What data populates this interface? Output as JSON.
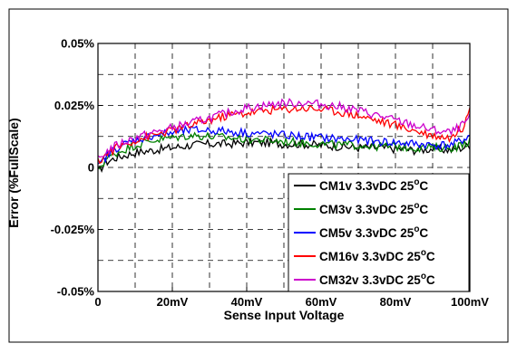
{
  "chart_data": {
    "type": "line",
    "xlabel": "Sense Input Voltage",
    "ylabel": "Error (%FullScale)",
    "xlim": [
      0,
      100
    ],
    "ylim": [
      -0.05,
      0.05
    ],
    "x_ticks": [
      {
        "value": 0,
        "label": "0"
      },
      {
        "value": 20,
        "label": "20mV"
      },
      {
        "value": 40,
        "label": "40mV"
      },
      {
        "value": 60,
        "label": "60mV"
      },
      {
        "value": 80,
        "label": "80mV"
      },
      {
        "value": 100,
        "label": "100mV"
      }
    ],
    "y_ticks": [
      {
        "value": 0.05,
        "label": "0.05%"
      },
      {
        "value": 0.025,
        "label": "0.025%"
      },
      {
        "value": 0,
        "label": "0"
      },
      {
        "value": -0.025,
        "label": "-0.025%"
      },
      {
        "value": -0.05,
        "label": "-0.05%"
      }
    ],
    "grid": true,
    "legend_position": "bottom-right",
    "x": [
      0,
      2,
      5,
      10,
      15,
      20,
      25,
      30,
      35,
      40,
      45,
      50,
      55,
      60,
      65,
      70,
      75,
      80,
      85,
      90,
      95,
      98,
      100
    ],
    "series": [
      {
        "name": "CM1v   3.3vDC 25°C",
        "color": "#000000",
        "values": [
          -0.002,
          0.002,
          0.004,
          0.006,
          0.007,
          0.008,
          0.009,
          0.0095,
          0.0095,
          0.01,
          0.01,
          0.0095,
          0.0095,
          0.009,
          0.0085,
          0.008,
          0.008,
          0.0075,
          0.007,
          0.0075,
          0.007,
          0.008,
          0.009
        ]
      },
      {
        "name": "CM3v   3.3vDC 25°C",
        "color": "#008000",
        "values": [
          -0.001,
          0.003,
          0.006,
          0.009,
          0.011,
          0.012,
          0.013,
          0.0125,
          0.012,
          0.0115,
          0.011,
          0.0105,
          0.01,
          0.0095,
          0.009,
          0.009,
          0.0085,
          0.0085,
          0.008,
          0.008,
          0.008,
          0.009,
          0.011
        ]
      },
      {
        "name": "CM5v   3.3vDC 25°C",
        "color": "#0000ff",
        "values": [
          0.0,
          0.004,
          0.008,
          0.011,
          0.013,
          0.014,
          0.015,
          0.015,
          0.0145,
          0.014,
          0.0135,
          0.013,
          0.0125,
          0.012,
          0.0115,
          0.011,
          0.0105,
          0.01,
          0.0095,
          0.009,
          0.009,
          0.011,
          0.013
        ]
      },
      {
        "name": "CM16v 3.3vDC 25°C",
        "color": "#ff0000",
        "values": [
          0.002,
          0.005,
          0.008,
          0.011,
          0.013,
          0.015,
          0.017,
          0.019,
          0.021,
          0.022,
          0.023,
          0.0235,
          0.024,
          0.0235,
          0.0225,
          0.021,
          0.019,
          0.017,
          0.015,
          0.013,
          0.012,
          0.016,
          0.025
        ]
      },
      {
        "name": "CM32v 3.3vDC 25°C",
        "color": "#cc00cc",
        "values": [
          0.003,
          0.006,
          0.009,
          0.012,
          0.014,
          0.016,
          0.018,
          0.02,
          0.022,
          0.024,
          0.025,
          0.026,
          0.026,
          0.0255,
          0.0245,
          0.023,
          0.021,
          0.019,
          0.017,
          0.015,
          0.014,
          0.017,
          0.02
        ]
      }
    ]
  }
}
